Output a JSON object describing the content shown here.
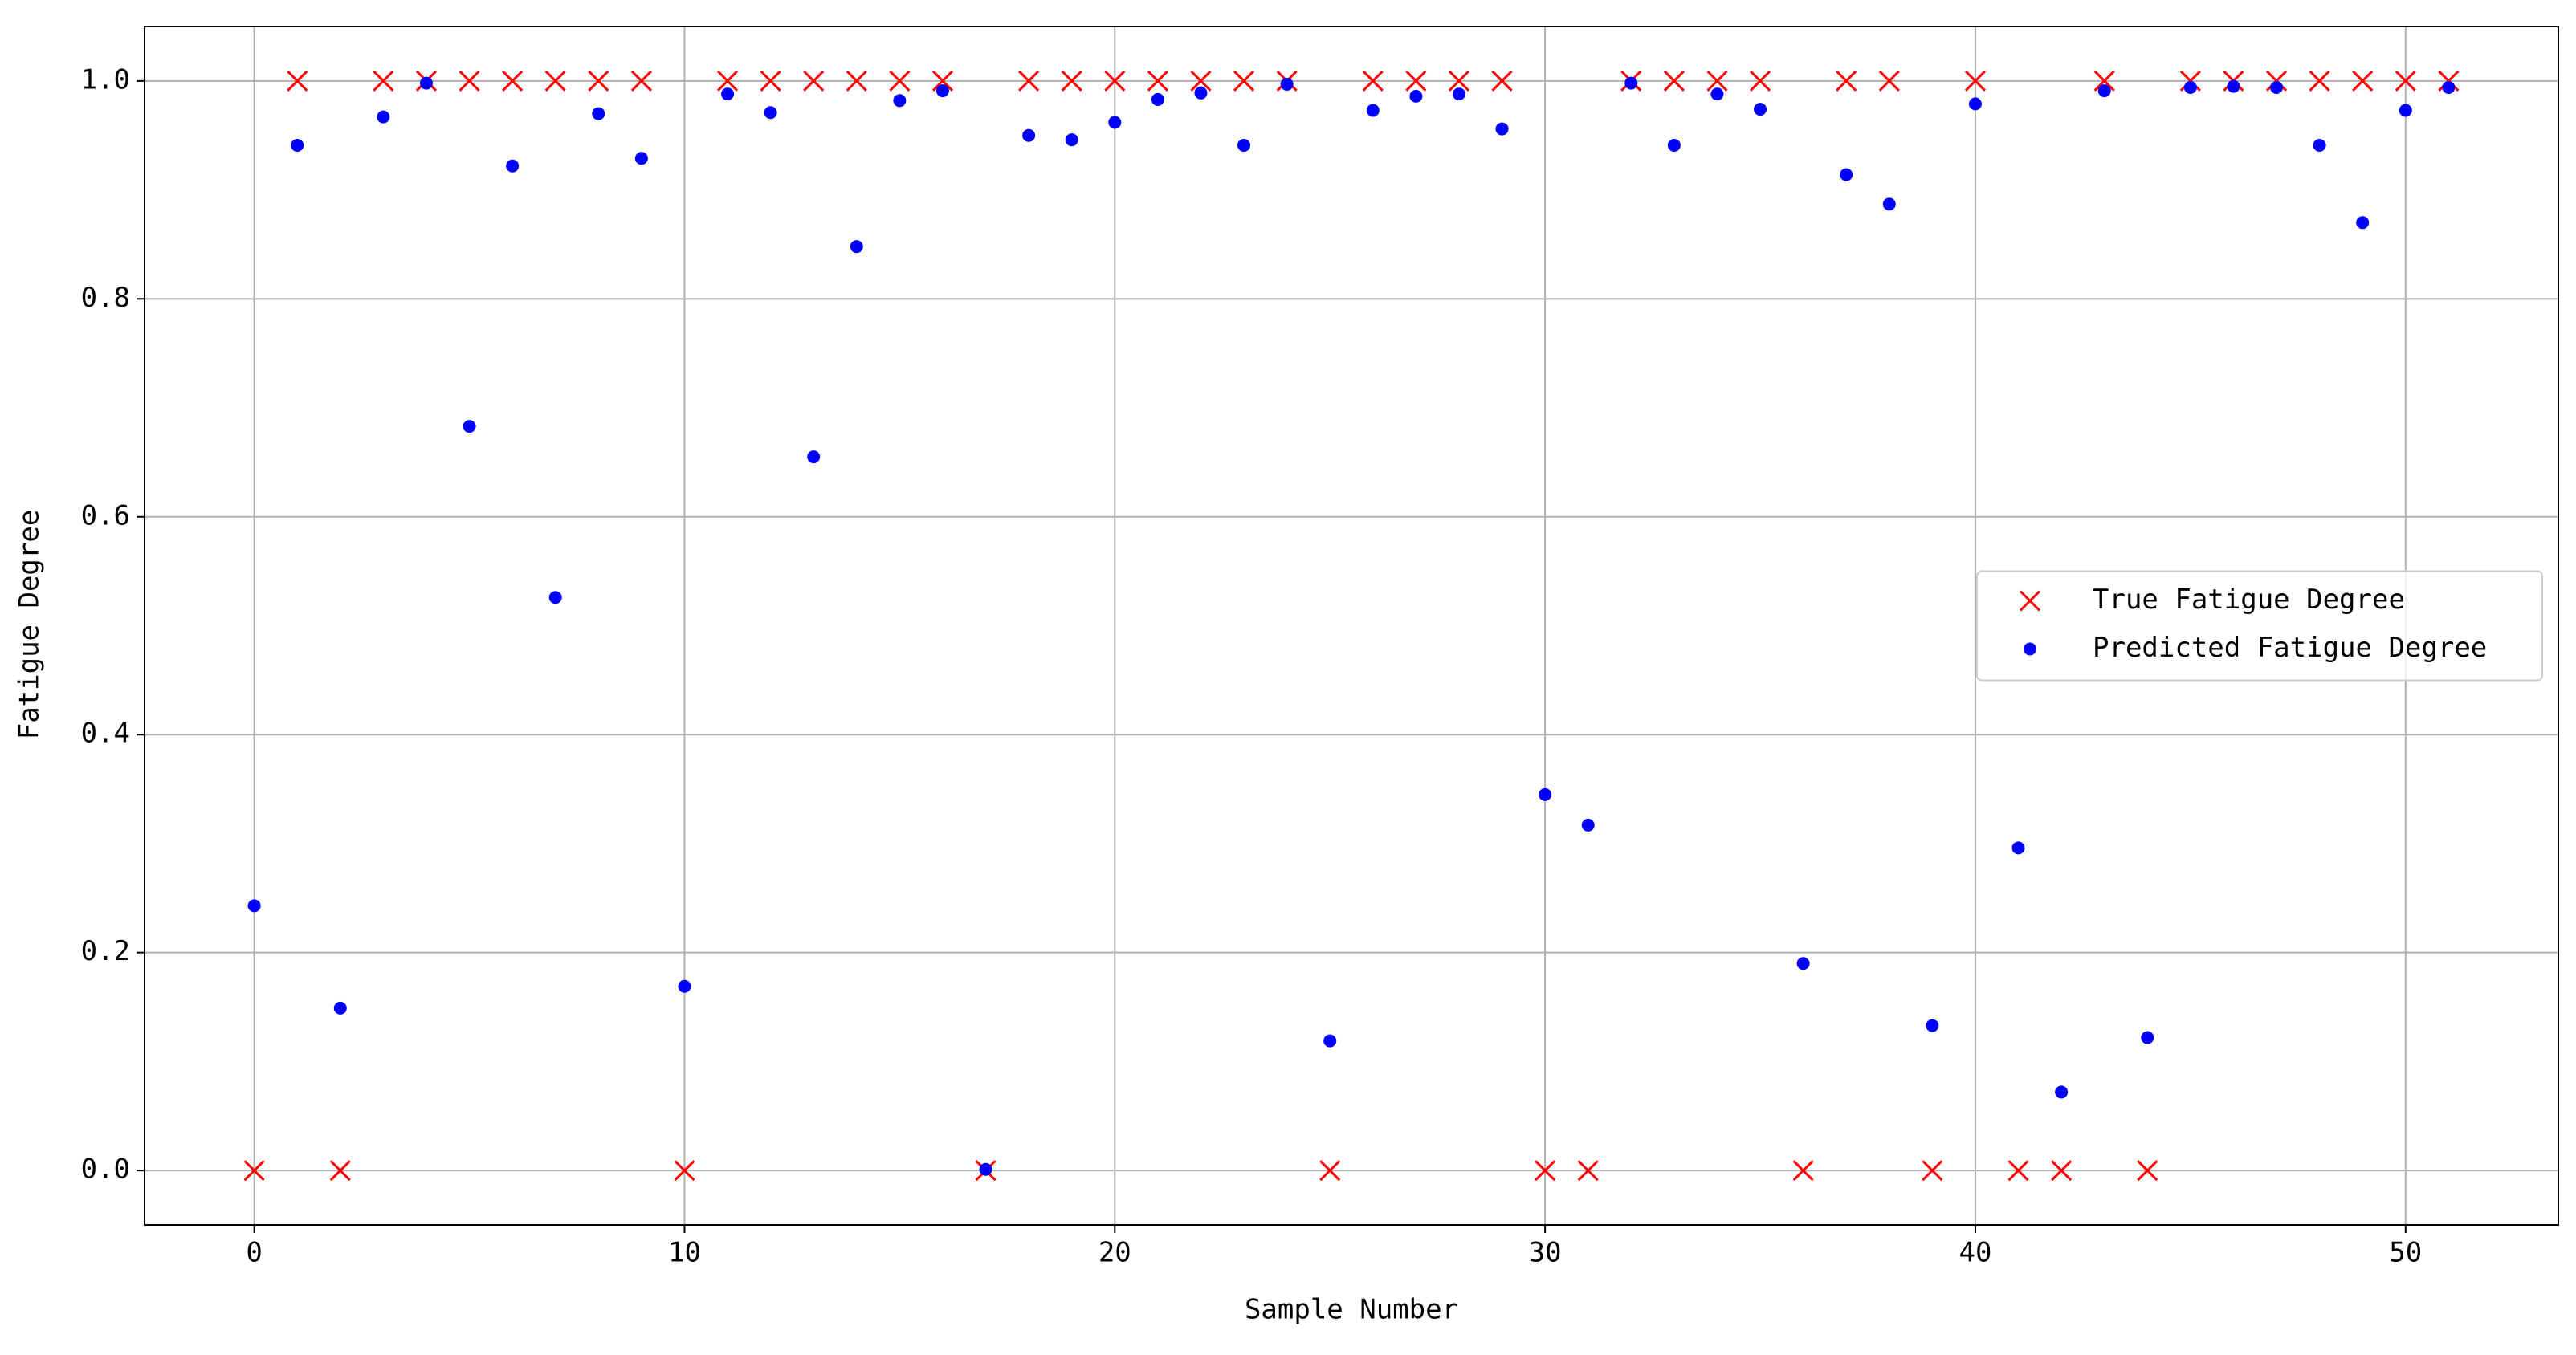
{
  "chart_data": {
    "type": "scatter",
    "xlabel": "Sample Number",
    "ylabel": "Fatigue Degree",
    "x": [
      0,
      1,
      2,
      3,
      4,
      5,
      6,
      7,
      8,
      9,
      10,
      11,
      12,
      13,
      14,
      15,
      16,
      17,
      18,
      19,
      20,
      21,
      22,
      23,
      24,
      25,
      26,
      27,
      28,
      29,
      30,
      31,
      32,
      33,
      34,
      35,
      36,
      37,
      38,
      39,
      40,
      41,
      42,
      43,
      44,
      45,
      46,
      47,
      48,
      49,
      50,
      51
    ],
    "series": [
      {
        "name": "True Fatigue Degree",
        "color": "#ff0000",
        "marker": "x",
        "values": [
          0,
          1,
          0,
          1,
          1,
          1,
          1,
          1,
          1,
          1,
          0,
          1,
          1,
          1,
          1,
          1,
          1,
          0,
          1,
          1,
          1,
          1,
          1,
          1,
          1,
          0,
          1,
          1,
          1,
          1,
          0,
          0,
          1,
          1,
          1,
          1,
          0,
          1,
          1,
          0,
          1,
          0,
          0,
          1,
          0,
          1,
          1,
          1,
          1,
          1,
          1,
          1
        ]
      },
      {
        "name": "Predicted Fatigue Degree",
        "color": "#0000ff",
        "marker": "o",
        "values": [
          0.243,
          0.941,
          0.149,
          0.967,
          0.998,
          0.683,
          0.922,
          0.526,
          0.97,
          0.929,
          0.169,
          0.988,
          0.971,
          0.655,
          0.848,
          0.982,
          0.991,
          0.001,
          0.95,
          0.946,
          0.962,
          0.983,
          0.989,
          0.941,
          0.997,
          0.119,
          0.973,
          0.986,
          0.988,
          0.956,
          0.345,
          0.317,
          0.998,
          0.941,
          0.988,
          0.974,
          0.19,
          0.914,
          0.887,
          0.133,
          0.979,
          0.296,
          0.072,
          0.991,
          0.122,
          0.994,
          0.995,
          0.994,
          0.941,
          0.87,
          0.973,
          0.994
        ]
      }
    ],
    "xlim": [
      -2.55,
      53.55
    ],
    "ylim": [
      -0.05,
      1.05
    ],
    "xticks": [
      0,
      10,
      20,
      30,
      40,
      50
    ],
    "yticks": [
      {
        "value": 0,
        "label": "0.0"
      },
      0.2,
      0.4,
      0.6,
      0.8,
      {
        "value": 1,
        "label": "1.0"
      }
    ],
    "grid": true,
    "legend": "right"
  }
}
